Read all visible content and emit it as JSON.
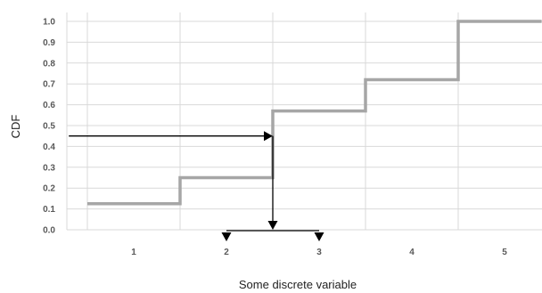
{
  "chart_data": {
    "type": "line",
    "title": "",
    "xlabel": "Some discrete variable",
    "ylabel": "CDF",
    "xlim": [
      0.3,
      5.4
    ],
    "ylim": [
      0,
      1
    ],
    "grid": true,
    "x_ticks": [
      "1",
      "2",
      "3",
      "4",
      "5"
    ],
    "y_ticks": [
      "0.0",
      "0.1",
      "0.2",
      "0.3",
      "0.4",
      "0.5",
      "0.6",
      "0.7",
      "0.8",
      "0.9",
      "1.0"
    ],
    "series": [
      {
        "style": "step",
        "color": "#a6a6a6",
        "points": [
          {
            "x": 0.5,
            "y": 0.125
          },
          {
            "x": 1.5,
            "y": 0.125
          },
          {
            "x": 1.5,
            "y": 0.25
          },
          {
            "x": 2.5,
            "y": 0.25
          },
          {
            "x": 2.5,
            "y": 0.57
          },
          {
            "x": 3.5,
            "y": 0.57
          },
          {
            "x": 3.5,
            "y": 0.72
          },
          {
            "x": 4.5,
            "y": 0.72
          },
          {
            "x": 4.5,
            "y": 1.0
          },
          {
            "x": 5.4,
            "y": 1.0
          }
        ]
      }
    ],
    "annotations": {
      "color": "#000000",
      "horizontal_arrow": {
        "from": {
          "x": 0.3,
          "y": 0.45
        },
        "to": {
          "x": 2.5,
          "y": 0.45
        }
      },
      "vertical_arrow": {
        "from": {
          "x": 2.5,
          "y": 0.45
        },
        "to": {
          "x": 2.5,
          "y": 0.0
        }
      },
      "bracket": {
        "y": 0.0,
        "from_x": 2.0,
        "to_x": 3.0,
        "arrow_targets": [
          2,
          3
        ]
      }
    }
  }
}
